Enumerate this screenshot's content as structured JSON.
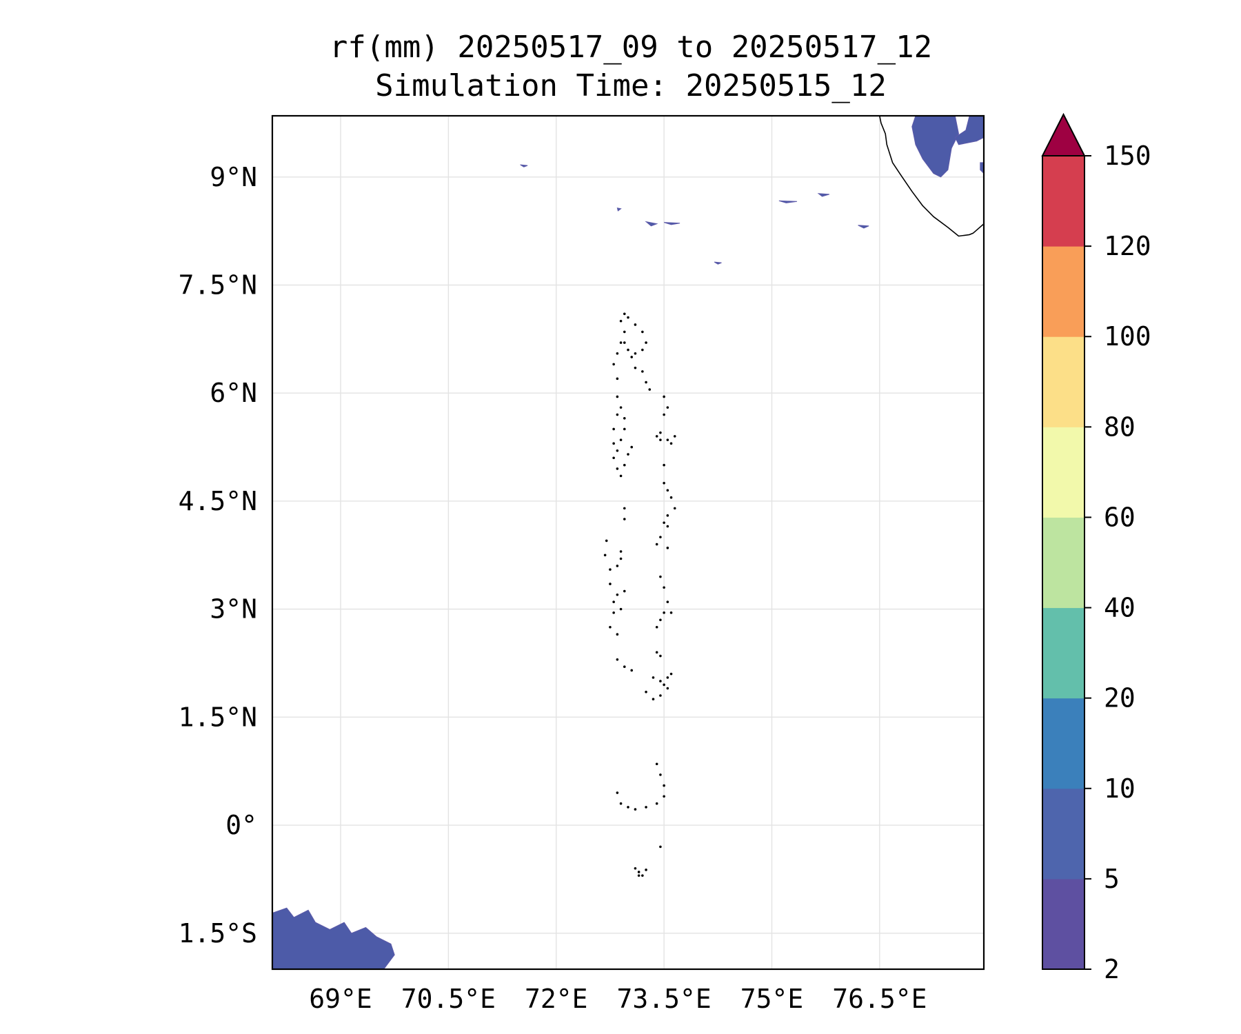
{
  "chart_data": {
    "type": "heatmap",
    "title": "rf(mm) 20250517_09 to 20250517_12",
    "subtitle": "Simulation Time: 20250515_12",
    "xlim": [
      68.05,
      77.95
    ],
    "ylim": [
      -2.0,
      9.85
    ],
    "x_ticks": [
      {
        "value": 69.0,
        "label": "69°E"
      },
      {
        "value": 70.5,
        "label": "70.5°E"
      },
      {
        "value": 72.0,
        "label": "72°E"
      },
      {
        "value": 73.5,
        "label": "73.5°E"
      },
      {
        "value": 75.0,
        "label": "75°E"
      },
      {
        "value": 76.5,
        "label": "76.5°E"
      }
    ],
    "y_ticks": [
      {
        "value": 9.0,
        "label": "9°N"
      },
      {
        "value": 7.5,
        "label": "7.5°N"
      },
      {
        "value": 6.0,
        "label": "6°N"
      },
      {
        "value": 4.5,
        "label": "4.5°N"
      },
      {
        "value": 3.0,
        "label": "3°N"
      },
      {
        "value": 1.5,
        "label": "1.5°N"
      },
      {
        "value": 0.0,
        "label": "0°"
      },
      {
        "value": -1.5,
        "label": "1.5°S"
      }
    ],
    "grid": true,
    "colorbar": {
      "levels": [
        2,
        5,
        10,
        20,
        40,
        60,
        80,
        100,
        120,
        150
      ],
      "labels": [
        "2",
        "5",
        "10",
        "20",
        "40",
        "60",
        "80",
        "100",
        "120",
        "150"
      ],
      "colors": [
        "#5e50a1",
        "#4e65ad",
        "#3b80bb",
        "#63bfab",
        "#bde4a0",
        "#f2f9ab",
        "#fcdf88",
        "#f99e58",
        "#d53e4f"
      ],
      "extend_color": "#9e0142",
      "extend": "max"
    },
    "rain_color": "#4d5ba8",
    "rain_regions": [
      {
        "name": "southwest-rain",
        "points": [
          [
            68.05,
            -1.22
          ],
          [
            68.25,
            -1.15
          ],
          [
            68.35,
            -1.28
          ],
          [
            68.55,
            -1.18
          ],
          [
            68.65,
            -1.35
          ],
          [
            68.85,
            -1.45
          ],
          [
            69.05,
            -1.35
          ],
          [
            69.15,
            -1.5
          ],
          [
            69.35,
            -1.42
          ],
          [
            69.5,
            -1.55
          ],
          [
            69.7,
            -1.65
          ],
          [
            69.75,
            -1.8
          ],
          [
            69.6,
            -2.0
          ],
          [
            68.05,
            -2.0
          ]
        ]
      },
      {
        "name": "northeast-rain-coast",
        "points": [
          [
            77.0,
            9.85
          ],
          [
            77.55,
            9.85
          ],
          [
            77.6,
            9.6
          ],
          [
            77.5,
            9.4
          ],
          [
            77.45,
            9.1
          ],
          [
            77.35,
            9.0
          ],
          [
            77.25,
            9.05
          ],
          [
            77.1,
            9.25
          ],
          [
            77.0,
            9.45
          ],
          [
            76.95,
            9.7
          ]
        ]
      },
      {
        "name": "northeast-rain-east",
        "points": [
          [
            77.75,
            9.85
          ],
          [
            77.95,
            9.85
          ],
          [
            77.95,
            9.55
          ],
          [
            77.85,
            9.5
          ],
          [
            77.6,
            9.45
          ],
          [
            77.55,
            9.55
          ],
          [
            77.7,
            9.65
          ]
        ]
      },
      {
        "name": "northeast-rain-edge",
        "points": [
          [
            77.9,
            9.2
          ],
          [
            77.95,
            9.2
          ],
          [
            77.95,
            9.05
          ],
          [
            77.9,
            9.1
          ]
        ]
      },
      {
        "name": "rain-speck-1",
        "points": [
          [
            71.5,
            9.17
          ],
          [
            71.6,
            9.16
          ],
          [
            71.55,
            9.14
          ]
        ]
      },
      {
        "name": "rain-speck-2",
        "points": [
          [
            73.25,
            8.38
          ],
          [
            73.4,
            8.35
          ],
          [
            73.32,
            8.32
          ]
        ]
      },
      {
        "name": "rain-speck-3",
        "points": [
          [
            73.5,
            8.37
          ],
          [
            73.72,
            8.36
          ],
          [
            73.6,
            8.34
          ]
        ]
      },
      {
        "name": "rain-speck-4",
        "points": [
          [
            75.1,
            8.67
          ],
          [
            75.35,
            8.66
          ],
          [
            75.2,
            8.64
          ]
        ]
      },
      {
        "name": "rain-speck-5",
        "points": [
          [
            75.65,
            8.77
          ],
          [
            75.8,
            8.76
          ],
          [
            75.7,
            8.73
          ]
        ]
      },
      {
        "name": "rain-speck-6",
        "points": [
          [
            76.2,
            8.33
          ],
          [
            76.35,
            8.32
          ],
          [
            76.28,
            8.29
          ]
        ]
      },
      {
        "name": "rain-speck-7",
        "points": [
          [
            74.2,
            7.82
          ],
          [
            74.3,
            7.81
          ],
          [
            74.25,
            7.79
          ]
        ]
      },
      {
        "name": "rain-speck-8",
        "points": [
          [
            72.85,
            8.57
          ],
          [
            72.9,
            8.56
          ],
          [
            72.86,
            8.53
          ]
        ]
      }
    ],
    "coastlines": [
      {
        "name": "india-coast",
        "points": [
          [
            76.5,
            9.85
          ],
          [
            76.52,
            9.75
          ],
          [
            76.58,
            9.6
          ],
          [
            76.6,
            9.45
          ],
          [
            76.68,
            9.2
          ],
          [
            76.78,
            9.05
          ],
          [
            76.95,
            8.8
          ],
          [
            77.1,
            8.6
          ],
          [
            77.25,
            8.45
          ],
          [
            77.45,
            8.3
          ],
          [
            77.6,
            8.18
          ],
          [
            77.75,
            8.2
          ],
          [
            77.8,
            8.22
          ],
          [
            77.95,
            8.35
          ]
        ]
      }
    ],
    "islands": [
      {
        "name": "maldives-north",
        "points": [
          [
            72.95,
            7.1
          ],
          [
            73.0,
            7.05
          ],
          [
            73.1,
            6.95
          ],
          [
            73.2,
            6.85
          ],
          [
            73.25,
            6.7
          ],
          [
            73.2,
            6.6
          ],
          [
            73.1,
            6.55
          ],
          [
            73.0,
            6.6
          ],
          [
            72.95,
            6.7
          ],
          [
            73.05,
            6.5
          ],
          [
            73.1,
            6.35
          ],
          [
            73.2,
            6.3
          ],
          [
            73.25,
            6.15
          ],
          [
            73.3,
            6.05
          ],
          [
            72.85,
            6.2
          ],
          [
            72.8,
            6.4
          ],
          [
            72.85,
            6.55
          ],
          [
            72.9,
            6.7
          ],
          [
            72.95,
            6.85
          ],
          [
            72.9,
            7.0
          ]
        ]
      },
      {
        "name": "maldives-central-west",
        "points": [
          [
            72.85,
            5.95
          ],
          [
            72.9,
            5.8
          ],
          [
            72.95,
            5.65
          ],
          [
            72.95,
            5.5
          ],
          [
            72.9,
            5.35
          ],
          [
            72.85,
            5.2
          ],
          [
            73.0,
            5.15
          ],
          [
            73.05,
            5.25
          ],
          [
            72.95,
            5.0
          ],
          [
            72.9,
            4.85
          ],
          [
            72.85,
            4.95
          ],
          [
            72.8,
            5.1
          ],
          [
            72.8,
            5.3
          ],
          [
            72.8,
            5.5
          ],
          [
            72.85,
            5.7
          ]
        ]
      },
      {
        "name": "maldives-central-east",
        "points": [
          [
            73.5,
            5.95
          ],
          [
            73.55,
            5.8
          ],
          [
            73.5,
            5.7
          ],
          [
            73.45,
            5.45
          ],
          [
            73.55,
            5.35
          ],
          [
            73.65,
            5.4
          ],
          [
            73.6,
            5.3
          ],
          [
            73.45,
            5.35
          ],
          [
            73.4,
            5.4
          ],
          [
            73.5,
            5.0
          ],
          [
            73.5,
            4.75
          ],
          [
            73.55,
            4.65
          ],
          [
            73.6,
            4.55
          ],
          [
            73.65,
            4.4
          ],
          [
            73.55,
            4.3
          ],
          [
            73.5,
            4.2
          ],
          [
            73.55,
            4.15
          ],
          [
            73.45,
            4.0
          ],
          [
            73.4,
            3.9
          ],
          [
            73.55,
            3.85
          ]
        ]
      },
      {
        "name": "maldives-south-west",
        "points": [
          [
            72.95,
            4.4
          ],
          [
            72.95,
            4.25
          ],
          [
            72.7,
            3.95
          ],
          [
            72.68,
            3.75
          ],
          [
            72.75,
            3.55
          ],
          [
            72.85,
            3.6
          ],
          [
            72.9,
            3.7
          ],
          [
            72.9,
            3.8
          ],
          [
            72.75,
            3.35
          ],
          [
            72.8,
            3.1
          ],
          [
            72.85,
            3.2
          ],
          [
            72.95,
            3.25
          ],
          [
            72.9,
            3.0
          ],
          [
            72.8,
            2.95
          ],
          [
            72.75,
            2.75
          ],
          [
            72.85,
            2.65
          ],
          [
            72.85,
            2.3
          ],
          [
            72.95,
            2.2
          ],
          [
            73.05,
            2.15
          ]
        ]
      },
      {
        "name": "maldives-south-east",
        "points": [
          [
            73.45,
            3.45
          ],
          [
            73.5,
            3.3
          ],
          [
            73.55,
            3.1
          ],
          [
            73.6,
            2.95
          ],
          [
            73.5,
            2.95
          ],
          [
            73.45,
            2.85
          ],
          [
            73.4,
            2.75
          ],
          [
            73.4,
            2.4
          ],
          [
            73.45,
            2.35
          ],
          [
            73.35,
            2.05
          ],
          [
            73.45,
            2.0
          ],
          [
            73.55,
            2.05
          ],
          [
            73.6,
            2.1
          ],
          [
            73.55,
            1.9
          ],
          [
            73.45,
            1.8
          ],
          [
            73.35,
            1.75
          ],
          [
            73.25,
            1.85
          ],
          [
            73.5,
            1.95
          ]
        ]
      },
      {
        "name": "maldives-huvadhu",
        "points": [
          [
            73.4,
            0.85
          ],
          [
            73.45,
            0.7
          ],
          [
            73.5,
            0.55
          ],
          [
            73.5,
            0.4
          ],
          [
            73.4,
            0.3
          ],
          [
            73.25,
            0.25
          ],
          [
            73.1,
            0.22
          ],
          [
            73.0,
            0.25
          ],
          [
            72.9,
            0.3
          ],
          [
            72.85,
            0.45
          ]
        ]
      },
      {
        "name": "maldives-fuvahmulah",
        "points": [
          [
            73.45,
            -0.3
          ]
        ]
      },
      {
        "name": "maldives-addu",
        "points": [
          [
            73.1,
            -0.6
          ],
          [
            73.15,
            -0.7
          ],
          [
            73.2,
            -0.7
          ],
          [
            73.25,
            -0.62
          ],
          [
            73.15,
            -0.65
          ]
        ]
      }
    ]
  }
}
